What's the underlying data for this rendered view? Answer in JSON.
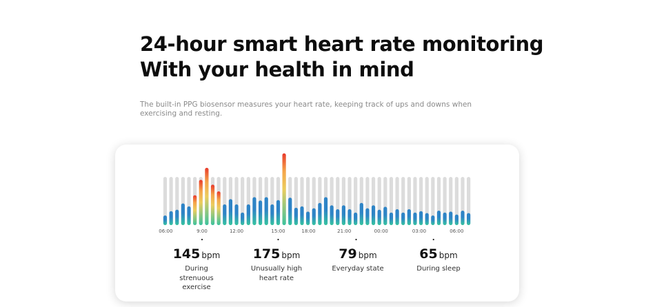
{
  "header": {
    "title_line1": "24-hour smart heart rate monitoring",
    "title_line2": "With your health in mind",
    "description": "The built-in PPG biosensor measures your heart rate, keeping track of ups and downs when exercising and resting."
  },
  "chart_data": {
    "type": "bar",
    "title": "",
    "xlabel": "",
    "ylabel": "",
    "description": "24-hour heart-rate activity bars; values are relative fill levels (1.0 = full gray track), peaks exceed the track",
    "bar_count": 52,
    "values": [
      0.2,
      0.29,
      0.32,
      0.45,
      0.39,
      0.62,
      0.94,
      1.19,
      0.84,
      0.7,
      0.43,
      0.54,
      0.43,
      0.26,
      0.43,
      0.58,
      0.51,
      0.58,
      0.43,
      0.52,
      1.49,
      0.57,
      0.36,
      0.39,
      0.28,
      0.35,
      0.46,
      0.58,
      0.41,
      0.33,
      0.41,
      0.33,
      0.26,
      0.46,
      0.35,
      0.41,
      0.32,
      0.38,
      0.26,
      0.33,
      0.26,
      0.33,
      0.26,
      0.29,
      0.25,
      0.2,
      0.3,
      0.26,
      0.28,
      0.22,
      0.3,
      0.25
    ],
    "highlight_bars": [
      5,
      6,
      7,
      8,
      9,
      20
    ],
    "x_tick_labels": [
      {
        "label": "06:00",
        "bar": 1.1
      },
      {
        "label": "9:00",
        "bar": 7.2
      },
      {
        "label": "12:00",
        "bar": 13.0
      },
      {
        "label": "15:00",
        "bar": 20.0
      },
      {
        "label": "18:00",
        "bar": 25.1
      },
      {
        "label": "21:00",
        "bar": 31.1
      },
      {
        "label": "00:00",
        "bar": 37.3
      },
      {
        "label": "03:00",
        "bar": 43.7
      },
      {
        "label": "06:00",
        "bar": 50.0
      }
    ],
    "marker_dots_at_bar": [
      7.2,
      20.0,
      33.1,
      46.1
    ],
    "grid": false,
    "legend": "none",
    "colors": {
      "track": "#dcdcdc",
      "normal_top": "#2e84c6",
      "normal_bottom": "#36c4a0",
      "peak_top": "#e8392b",
      "peak_mid_orange": "#f5a54a",
      "peak_mid_yellow": "#eccd5e",
      "peak_bottom": "#3cc29d",
      "label": "#555555"
    }
  },
  "stats": [
    {
      "value": "145",
      "unit": "bpm",
      "caption": "During strenuous exercise"
    },
    {
      "value": "175",
      "unit": "bpm",
      "caption": "Unusually high heart rate"
    },
    {
      "value": "79",
      "unit": "bpm",
      "caption": "Everyday state"
    },
    {
      "value": "65",
      "unit": "bpm",
      "caption": "During sleep"
    }
  ]
}
